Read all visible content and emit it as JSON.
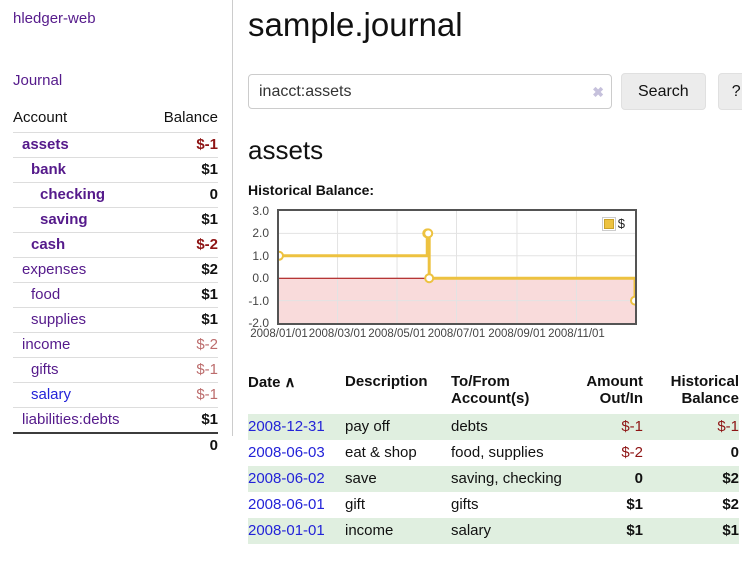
{
  "brand": "hledger-web",
  "nav": {
    "journal": "Journal"
  },
  "colors": {
    "purple": "#551a8b",
    "blue": "#2323d8",
    "dark-red": "#8e1414",
    "soft-red": "#bc6c6c",
    "stripe-green": "#e0efe0",
    "negative-pink": "#f9dbdb",
    "zero-line": "#a00000",
    "series-yellow": "#edc240",
    "grid-line": "#e3e3e3",
    "plot-border": "#545454",
    "divider": "#cccccc",
    "row-line": "#dddddd"
  },
  "sidebar": {
    "columns": {
      "account": "Account",
      "balance": "Balance"
    },
    "accounts": [
      {
        "name": "assets",
        "balance": "$-1",
        "indent": 0,
        "bold": true
      },
      {
        "name": "bank",
        "balance": "$1",
        "indent": 1,
        "bold": true
      },
      {
        "name": "checking",
        "balance": "0",
        "indent": 2,
        "bold": true
      },
      {
        "name": "saving",
        "balance": "$1",
        "indent": 2,
        "bold": true
      },
      {
        "name": "cash",
        "balance": "$-2",
        "indent": 1,
        "bold": true
      },
      {
        "name": "expenses",
        "balance": "$2",
        "indent": 0,
        "bold": false
      },
      {
        "name": "food",
        "balance": "$1",
        "indent": 1,
        "bold": false
      },
      {
        "name": "supplies",
        "balance": "$1",
        "indent": 1,
        "bold": false
      },
      {
        "name": "income",
        "balance": "$-2",
        "indent": 0,
        "bold": false
      },
      {
        "name": "gifts",
        "balance": "$-1",
        "indent": 1,
        "bold": false
      },
      {
        "name": "salary",
        "balance": "$-1",
        "indent": 1,
        "bold": false,
        "blue": true
      },
      {
        "name": "liabilities:debts",
        "balance": "$1",
        "indent": 0,
        "bold": false
      }
    ],
    "total": "0"
  },
  "main": {
    "title": "sample.journal",
    "search": {
      "value": "inacct:assets",
      "clear_icon": "✖",
      "search_button": "Search",
      "help_button": "?"
    },
    "account_heading": "assets",
    "section_label": "Historical Balance:"
  },
  "chart_data": {
    "type": "line",
    "step": true,
    "title": "Historical Balance",
    "x_range": [
      "2008-01-01",
      "2008-12-31"
    ],
    "ylim": [
      -2,
      3
    ],
    "ytick_labels": [
      "3.0",
      "2.0",
      "1.0",
      "0.0",
      "-1.0",
      "-2.0"
    ],
    "ytick_values": [
      3,
      2,
      1,
      0,
      -1,
      -2
    ],
    "xtick_labels": [
      "2008/01/01",
      "2008/03/01",
      "2008/05/01",
      "2008/07/01",
      "2008/09/01",
      "2008/11/01"
    ],
    "xtick_dates": [
      "2008-01-01",
      "2008-03-01",
      "2008-05-01",
      "2008-07-01",
      "2008-09-01",
      "2008-11-01"
    ],
    "series": [
      {
        "name": "$",
        "color": "#edc240",
        "points": [
          [
            "2008-01-01",
            1
          ],
          [
            "2008-06-01",
            2
          ],
          [
            "2008-06-02",
            2
          ],
          [
            "2008-06-03",
            0
          ],
          [
            "2008-12-31",
            -1
          ]
        ]
      }
    ],
    "legend": [
      "$"
    ],
    "legend_position": "top-right",
    "grid": true,
    "negative_region_color": "#f9dbdb",
    "zero_line_color": "#a00000"
  },
  "register": {
    "headers": {
      "date": "Date",
      "description": "Description",
      "accounts": "To/From Account(s)",
      "amount": "Amount Out/In",
      "balance": "Historical Balance"
    },
    "sort_icon": "∧",
    "sort_column": "date",
    "sort_direction": "ascending",
    "rows": [
      {
        "date": "2008-12-31",
        "description": "pay off",
        "accounts": "debts",
        "amount": "$-1",
        "balance": "$-1"
      },
      {
        "date": "2008-06-03",
        "description": "eat & shop",
        "accounts": "food, supplies",
        "amount": "$-2",
        "balance": "0"
      },
      {
        "date": "2008-06-02",
        "description": "save",
        "accounts": "saving, checking",
        "amount": "0",
        "balance": "$2"
      },
      {
        "date": "2008-06-01",
        "description": "gift",
        "accounts": "gifts",
        "amount": "$1",
        "balance": "$2"
      },
      {
        "date": "2008-01-01",
        "description": "income",
        "accounts": "salary",
        "amount": "$1",
        "balance": "$1"
      }
    ]
  }
}
